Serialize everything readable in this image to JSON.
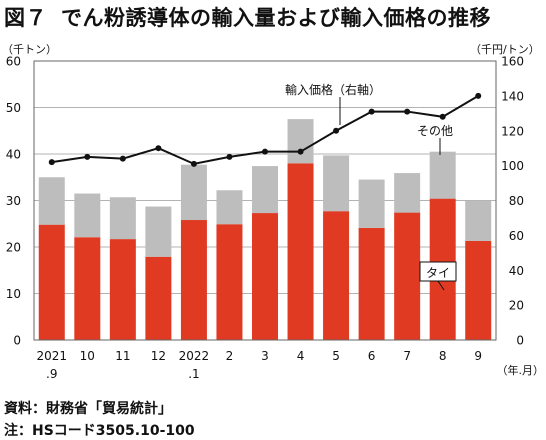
{
  "header": {
    "figure_no": "図７",
    "title": "でん粉誘導体の輸入量および輸入価格の推移"
  },
  "footer": {
    "source": "資料：財務省「貿易統計」",
    "note": "注：HSコード3505.10-100"
  },
  "colors": {
    "thailand": "#e03a22",
    "other": "#bdbdbd",
    "price_line": "#111111"
  },
  "chart_data": {
    "type": "bar",
    "stacked": true,
    "categories": [
      [
        "2021",
        ".9"
      ],
      [
        "10"
      ],
      [
        "11"
      ],
      [
        "12"
      ],
      [
        "2022",
        ".1"
      ],
      [
        "2"
      ],
      [
        "3"
      ],
      [
        "4"
      ],
      [
        "5"
      ],
      [
        "6"
      ],
      [
        "7"
      ],
      [
        "8"
      ],
      [
        "9"
      ]
    ],
    "series": [
      {
        "name": "タイ",
        "axis": "left",
        "values": [
          24.8,
          22.1,
          21.7,
          17.9,
          25.8,
          24.9,
          27.3,
          38.0,
          27.7,
          24.1,
          27.4,
          30.4,
          21.3
        ]
      },
      {
        "name": "その他",
        "axis": "left",
        "values": [
          10.2,
          9.4,
          9.0,
          10.8,
          11.9,
          7.3,
          10.1,
          9.5,
          12.0,
          10.4,
          8.5,
          10.1,
          8.6
        ]
      }
    ],
    "line_series": [
      {
        "name": "輸入価格（右軸）",
        "axis": "right",
        "values": [
          102,
          105,
          104,
          110,
          101,
          105,
          108,
          108,
          120,
          131,
          131,
          128,
          140
        ]
      }
    ],
    "left_axis": {
      "unit_label": "（千トン）",
      "ylim": [
        0,
        60
      ],
      "ticks": [
        0,
        10,
        20,
        30,
        40,
        50,
        60
      ]
    },
    "right_axis": {
      "unit_label": "（千円/トン）",
      "ylim": [
        0,
        160
      ],
      "ticks": [
        0,
        20,
        40,
        60,
        80,
        100,
        120,
        140,
        160
      ]
    },
    "x_unit_label": "（年.月）",
    "grid": true,
    "annotations": {
      "price": "輸入価格（右軸）",
      "other": "その他",
      "thai": "タイ"
    }
  }
}
